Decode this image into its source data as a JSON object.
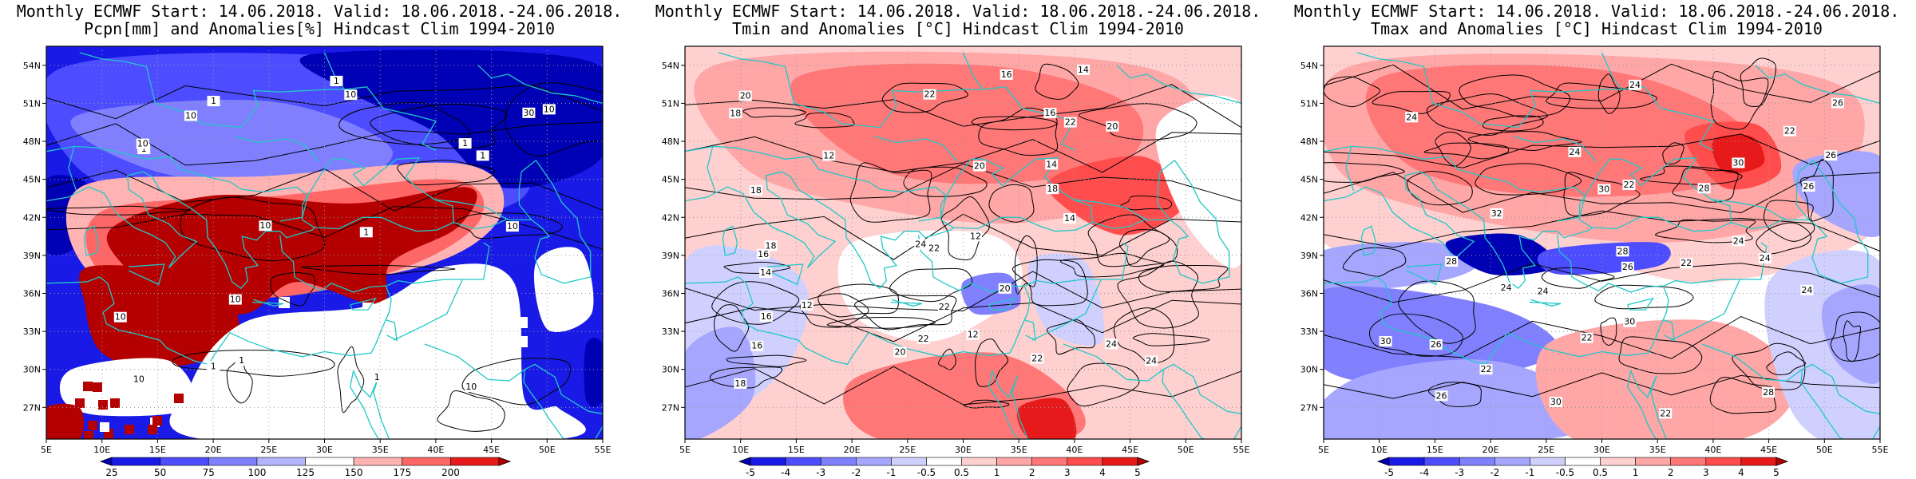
{
  "panels": [
    {
      "title_line1": "Monthly ECMWF Start: 14.06.2018. Valid: 18.06.2018.-24.06.2018.",
      "title_line2": "Pcpn[mm] and Anomalies[%] Hindcast Clim 1994-2010",
      "colorbar_labels": [
        "25",
        "50",
        "75",
        "100",
        "125",
        "150",
        "175",
        "200"
      ],
      "colorbar_colors": [
        "#0000b4",
        "#1a1ae6",
        "#4d4dff",
        "#8080ff",
        "#b3b3ff",
        "#ffffff",
        "#ffb3b3",
        "#ff6666",
        "#e61a1a",
        "#b40000"
      ],
      "contour_labels": [
        "10",
        "10",
        "10",
        "10",
        "10",
        "1",
        "1",
        "1",
        "10",
        "30",
        "1",
        "1",
        "10",
        "10",
        "1",
        "10",
        "10",
        "1",
        "1",
        "1"
      ]
    },
    {
      "title_line1": "Monthly ECMWF Start: 14.06.2018. Valid: 18.06.2018.-24.06.2018.",
      "title_line2": "Tmin and Anomalies [°C] Hindcast Clim 1994-2010",
      "colorbar_labels": [
        "-5",
        "-4",
        "-3",
        "-2",
        "-1",
        "-0.5",
        "0.5",
        "1",
        "2",
        "3",
        "4",
        "5"
      ],
      "colorbar_colors": [
        "#0000b4",
        "#1a1ae6",
        "#4d4dff",
        "#8080ff",
        "#a6a6ff",
        "#d0d0ff",
        "#ffffff",
        "#ffd0d0",
        "#ffa6a6",
        "#ff7777",
        "#ff4d4d",
        "#e61a1a",
        "#b40000"
      ],
      "contour_labels": [
        "14",
        "12",
        "14",
        "16",
        "12",
        "14",
        "18",
        "20",
        "16",
        "12",
        "14",
        "16",
        "22",
        "18",
        "18",
        "16",
        "12",
        "22",
        "20",
        "24",
        "22",
        "18",
        "22",
        "24",
        "20",
        "20",
        "22",
        "24",
        "16",
        "18",
        "22",
        "20"
      ]
    },
    {
      "title_line1": "Monthly ECMWF Start: 14.06.2018. Valid: 18.06.2018.-24.06.2018.",
      "title_line2": "Tmax and Anomalies [°C] Hindcast Clim 1994-2010",
      "colorbar_labels": [
        "-5",
        "-4",
        "-3",
        "-2",
        "-1",
        "-0.5",
        "0.5",
        "1",
        "2",
        "3",
        "4",
        "5"
      ],
      "colorbar_colors": [
        "#0000b4",
        "#1a1ae6",
        "#4d4dff",
        "#8080ff",
        "#a6a6ff",
        "#d0d0ff",
        "#ffffff",
        "#ffd0d0",
        "#ffa6a6",
        "#ff7777",
        "#ff4d4d",
        "#e61a1a",
        "#b40000"
      ],
      "contour_labels": [
        "22",
        "24",
        "26",
        "22",
        "26",
        "24",
        "30",
        "22",
        "28",
        "24",
        "30",
        "26",
        "28",
        "24",
        "22",
        "22",
        "24",
        "30",
        "28",
        "26",
        "24",
        "30",
        "26",
        "24",
        "22",
        "32",
        "28",
        "30",
        "24",
        "26"
      ]
    }
  ],
  "lat_labels": [
    "54N",
    "51N",
    "48N",
    "45N",
    "42N",
    "39N",
    "36N",
    "33N",
    "30N",
    "27N"
  ],
  "lon_labels": [
    "5E",
    "10E",
    "15E",
    "20E",
    "25E",
    "30E",
    "35E",
    "40E",
    "45E",
    "50E",
    "55E"
  ],
  "colors": {
    "coast": "#20c8c8",
    "contour": "#000000",
    "grid": "#999999"
  }
}
